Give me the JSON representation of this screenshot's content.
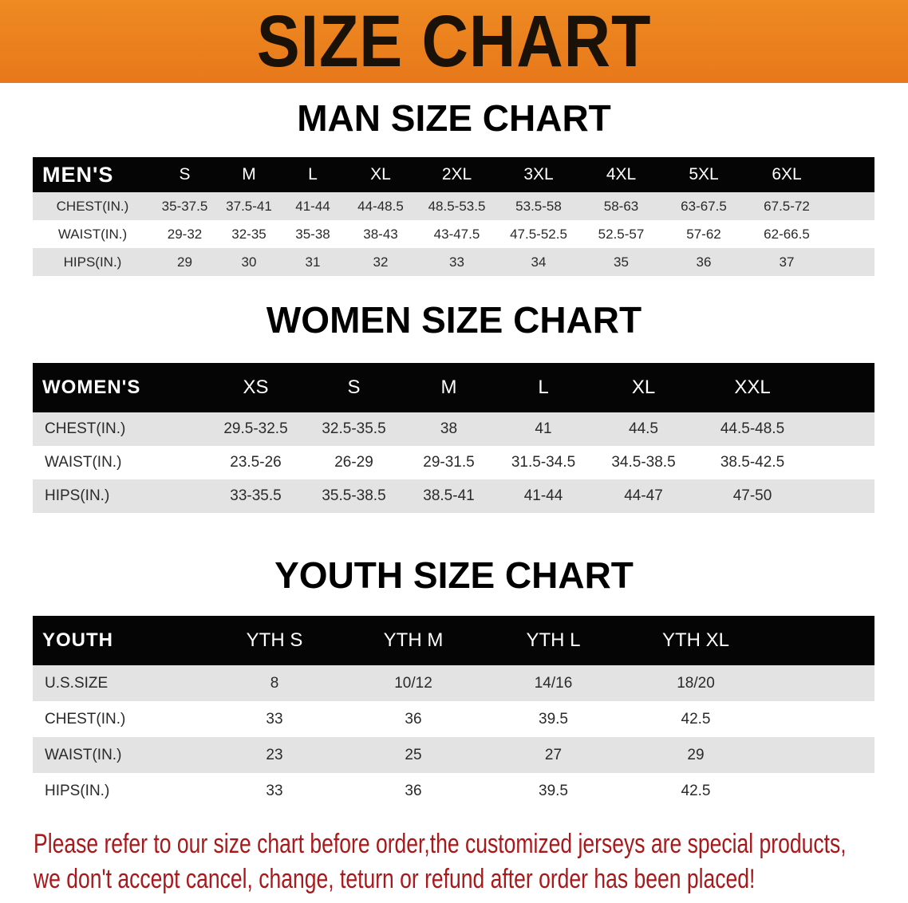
{
  "banner_title": "SIZE CHART",
  "colors": {
    "banner": "#ec8220",
    "header_row": "#050505",
    "stripe": "#e3e3e3",
    "note": "#a8191c"
  },
  "men": {
    "title": "MAN SIZE CHART",
    "corner": "MEN'S",
    "sizes": [
      "S",
      "M",
      "L",
      "XL",
      "2XL",
      "3XL",
      "4XL",
      "5XL",
      "6XL"
    ],
    "rows": [
      {
        "label": "CHEST(IN.)",
        "values": [
          "35-37.5",
          "37.5-41",
          "41-44",
          "44-48.5",
          "48.5-53.5",
          "53.5-58",
          "58-63",
          "63-67.5",
          "67.5-72"
        ]
      },
      {
        "label": "WAIST(IN.)",
        "values": [
          "29-32",
          "32-35",
          "35-38",
          "38-43",
          "43-47.5",
          "47.5-52.5",
          "52.5-57",
          "57-62",
          "62-66.5"
        ]
      },
      {
        "label": "HIPS(IN.)",
        "values": [
          "29",
          "30",
          "31",
          "32",
          "33",
          "34",
          "35",
          "36",
          "37"
        ]
      }
    ]
  },
  "women": {
    "title": "WOMEN SIZE CHART",
    "corner": "WOMEN'S",
    "sizes": [
      "XS",
      "S",
      "M",
      "L",
      "XL",
      "XXL"
    ],
    "rows": [
      {
        "label": "CHEST(IN.)",
        "values": [
          "29.5-32.5",
          "32.5-35.5",
          "38",
          "41",
          "44.5",
          "44.5-48.5"
        ]
      },
      {
        "label": "WAIST(IN.)",
        "values": [
          "23.5-26",
          "26-29",
          "29-31.5",
          "31.5-34.5",
          "34.5-38.5",
          "38.5-42.5"
        ]
      },
      {
        "label": "HIPS(IN.)",
        "values": [
          "33-35.5",
          "35.5-38.5",
          "38.5-41",
          "41-44",
          "44-47",
          "47-50"
        ]
      }
    ]
  },
  "youth": {
    "title": "YOUTH SIZE CHART",
    "corner": "YOUTH",
    "sizes": [
      "YTH S",
      "YTH M",
      "YTH L",
      "YTH XL"
    ],
    "rows": [
      {
        "label": "U.S.SIZE",
        "values": [
          "8",
          "10/12",
          "14/16",
          "18/20"
        ]
      },
      {
        "label": "CHEST(IN.)",
        "values": [
          "33",
          "36",
          "39.5",
          "42.5"
        ]
      },
      {
        "label": "WAIST(IN.)",
        "values": [
          "23",
          "25",
          "27",
          "29"
        ]
      },
      {
        "label": "HIPS(IN.)",
        "values": [
          "33",
          "36",
          "39.5",
          "42.5"
        ]
      }
    ]
  },
  "note": {
    "line1": "Please refer to our size chart before order,the customized jerseys are special products,",
    "line2": "we don't accept cancel, change, teturn or refund after order has been placed!"
  }
}
